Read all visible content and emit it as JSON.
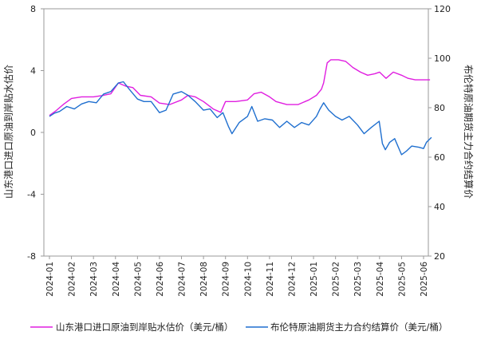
{
  "chart_data": {
    "type": "line",
    "y_left": {
      "label": "山东港口进口原油到岸贴水估价",
      "ylim": [
        -8,
        8
      ],
      "ticks": [
        8,
        4,
        0,
        -4,
        -8
      ]
    },
    "y_right": {
      "label": "布伦特原油期货主力合约结算价",
      "ylim": [
        20,
        120
      ],
      "ticks": [
        120,
        100,
        80,
        60,
        40,
        20
      ]
    },
    "x": {
      "ticks": [
        "2024-01",
        "2024-02",
        "2024-03",
        "2024-04",
        "2024-05",
        "2024-06",
        "2024-07",
        "2024-08",
        "2024-09",
        "2024-10",
        "2024-11",
        "2024-12",
        "2025-01",
        "2025-02",
        "2025-03",
        "2025-04",
        "2025-05",
        "2025-06"
      ]
    },
    "grid": false,
    "legend_position": "bottom",
    "series": [
      {
        "name": "山东港口进口原油到岸贴水估价（美元/桶）",
        "axis": "left",
        "color": "#e01ee0",
        "points": [
          [
            "2024-01-01",
            1.1
          ],
          [
            "2024-01-10",
            1.4
          ],
          [
            "2024-01-20",
            1.8
          ],
          [
            "2024-02-01",
            2.2
          ],
          [
            "2024-02-15",
            2.3
          ],
          [
            "2024-03-01",
            2.3
          ],
          [
            "2024-03-15",
            2.4
          ],
          [
            "2024-03-25",
            2.5
          ],
          [
            "2024-04-05",
            3.2
          ],
          [
            "2024-04-15",
            3.0
          ],
          [
            "2024-04-25",
            2.9
          ],
          [
            "2024-05-05",
            2.4
          ],
          [
            "2024-05-20",
            2.3
          ],
          [
            "2024-06-01",
            1.9
          ],
          [
            "2024-06-15",
            1.8
          ],
          [
            "2024-07-01",
            2.1
          ],
          [
            "2024-07-10",
            2.4
          ],
          [
            "2024-07-20",
            2.3
          ],
          [
            "2024-08-01",
            2.0
          ],
          [
            "2024-08-15",
            1.5
          ],
          [
            "2024-08-25",
            1.3
          ],
          [
            "2024-09-01",
            2.0
          ],
          [
            "2024-09-15",
            2.0
          ],
          [
            "2024-10-01",
            2.1
          ],
          [
            "2024-10-10",
            2.5
          ],
          [
            "2024-10-20",
            2.6
          ],
          [
            "2024-11-01",
            2.3
          ],
          [
            "2024-11-10",
            2.0
          ],
          [
            "2024-11-25",
            1.8
          ],
          [
            "2024-12-10",
            1.8
          ],
          [
            "2024-12-25",
            2.1
          ],
          [
            "2025-01-05",
            2.4
          ],
          [
            "2025-01-12",
            2.8
          ],
          [
            "2025-01-15",
            3.2
          ],
          [
            "2025-01-20",
            4.5
          ],
          [
            "2025-01-25",
            4.7
          ],
          [
            "2025-02-05",
            4.7
          ],
          [
            "2025-02-15",
            4.6
          ],
          [
            "2025-02-25",
            4.2
          ],
          [
            "2025-03-05",
            3.9
          ],
          [
            "2025-03-15",
            3.7
          ],
          [
            "2025-03-25",
            3.8
          ],
          [
            "2025-04-01",
            3.9
          ],
          [
            "2025-04-10",
            3.5
          ],
          [
            "2025-04-20",
            3.9
          ],
          [
            "2025-05-01",
            3.7
          ],
          [
            "2025-05-10",
            3.5
          ],
          [
            "2025-05-20",
            3.4
          ],
          [
            "2025-06-01",
            3.4
          ],
          [
            "2025-06-10",
            3.4
          ]
        ]
      },
      {
        "name": "布伦特原油期货主力合约结算价（美元/桶）",
        "axis": "right",
        "color": "#1f6fcf",
        "points": [
          [
            "2024-01-01",
            76.5
          ],
          [
            "2024-01-08",
            77.8
          ],
          [
            "2024-01-15",
            78.5
          ],
          [
            "2024-01-25",
            80.5
          ],
          [
            "2024-02-05",
            79.5
          ],
          [
            "2024-02-15",
            81.5
          ],
          [
            "2024-02-25",
            82.5
          ],
          [
            "2024-03-05",
            82.0
          ],
          [
            "2024-03-15",
            85.5
          ],
          [
            "2024-03-25",
            86.5
          ],
          [
            "2024-04-05",
            90.0
          ],
          [
            "2024-04-12",
            90.5
          ],
          [
            "2024-04-20",
            87.5
          ],
          [
            "2024-05-01",
            83.5
          ],
          [
            "2024-05-10",
            82.5
          ],
          [
            "2024-05-20",
            82.5
          ],
          [
            "2024-06-01",
            78.0
          ],
          [
            "2024-06-10",
            79.0
          ],
          [
            "2024-06-20",
            85.5
          ],
          [
            "2024-07-01",
            86.5
          ],
          [
            "2024-07-10",
            85.0
          ],
          [
            "2024-07-20",
            82.5
          ],
          [
            "2024-08-01",
            79.0
          ],
          [
            "2024-08-10",
            79.5
          ],
          [
            "2024-08-20",
            76.0
          ],
          [
            "2024-08-28",
            78.0
          ],
          [
            "2024-09-05",
            72.5
          ],
          [
            "2024-09-10",
            69.5
          ],
          [
            "2024-09-20",
            74.0
          ],
          [
            "2024-10-01",
            76.5
          ],
          [
            "2024-10-07",
            80.5
          ],
          [
            "2024-10-15",
            74.5
          ],
          [
            "2024-10-25",
            75.5
          ],
          [
            "2024-11-05",
            75.0
          ],
          [
            "2024-11-15",
            72.0
          ],
          [
            "2024-11-25",
            74.5
          ],
          [
            "2024-12-05",
            72.0
          ],
          [
            "2024-12-15",
            74.0
          ],
          [
            "2024-12-25",
            73.0
          ],
          [
            "2025-01-05",
            76.5
          ],
          [
            "2025-01-10",
            79.5
          ],
          [
            "2025-01-15",
            82.0
          ],
          [
            "2025-01-22",
            79.0
          ],
          [
            "2025-02-01",
            76.5
          ],
          [
            "2025-02-10",
            75.0
          ],
          [
            "2025-02-20",
            76.5
          ],
          [
            "2025-03-01",
            73.0
          ],
          [
            "2025-03-10",
            69.5
          ],
          [
            "2025-03-20",
            72.0
          ],
          [
            "2025-03-31",
            74.5
          ],
          [
            "2025-04-05",
            65.5
          ],
          [
            "2025-04-09",
            63.0
          ],
          [
            "2025-04-15",
            66.0
          ],
          [
            "2025-04-22",
            67.5
          ],
          [
            "2025-05-01",
            61.0
          ],
          [
            "2025-05-08",
            62.5
          ],
          [
            "2025-05-15",
            64.5
          ],
          [
            "2025-05-25",
            64.0
          ],
          [
            "2025-06-01",
            63.5
          ],
          [
            "2025-06-05",
            66.0
          ],
          [
            "2025-06-12",
            68.0
          ]
        ]
      }
    ]
  }
}
